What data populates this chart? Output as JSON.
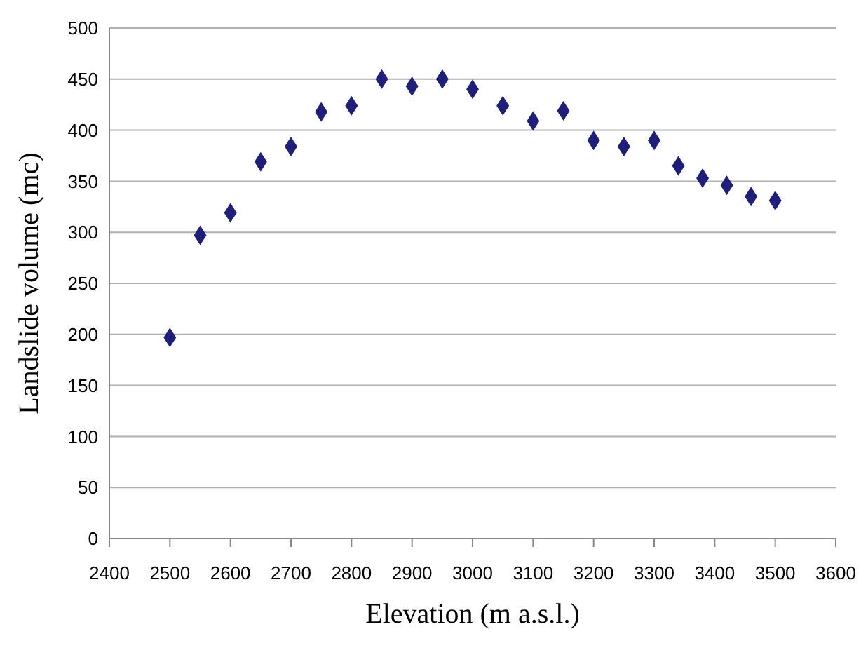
{
  "chart_data": {
    "type": "scatter",
    "xlabel": "Elevation (m a.s.l.)",
    "ylabel": "Landslide volume (mc)",
    "x": [
      2500,
      2550,
      2600,
      2650,
      2700,
      2750,
      2800,
      2850,
      2900,
      2950,
      3000,
      3050,
      3100,
      3150,
      3200,
      3250,
      3300,
      3340,
      3380,
      3420,
      3460,
      3500
    ],
    "series": [
      {
        "color": "#1f1f7a",
        "values": [
          197,
          297,
          319,
          369,
          384,
          418,
          424,
          450,
          443,
          450,
          440,
          424,
          409,
          419,
          390,
          384,
          390,
          365,
          353,
          346,
          335,
          331
        ]
      }
    ],
    "xlim": [
      2400,
      3600
    ],
    "xticks": [
      2400,
      2500,
      2600,
      2700,
      2800,
      2900,
      3000,
      3100,
      3200,
      3300,
      3400,
      3500,
      3600
    ],
    "ylim": [
      0,
      500
    ],
    "yticks": [
      0,
      50,
      100,
      150,
      200,
      250,
      300,
      350,
      400,
      450,
      500
    ],
    "grid": "y",
    "marker": "diamond",
    "legend": false
  }
}
